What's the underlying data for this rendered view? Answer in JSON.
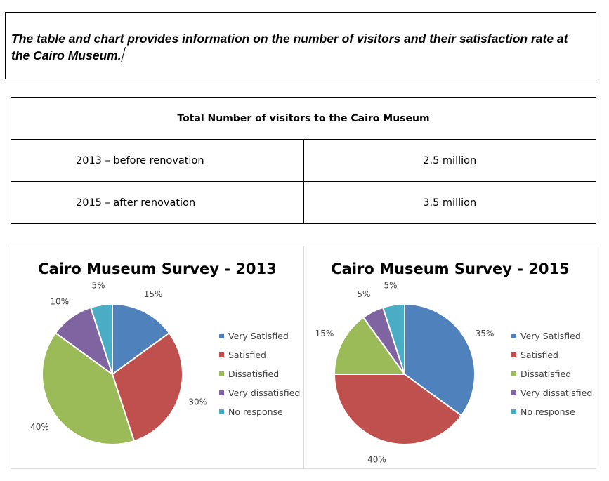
{
  "prompt": "The table and chart provides information on the number of visitors and their satisfaction rate at the Cairo Museum.",
  "table": {
    "title": "Total Number of visitors to the Cairo Museum",
    "rows": [
      {
        "label": "2013 – before renovation",
        "value": "2.5 million"
      },
      {
        "label": "2015 – after renovation",
        "value": "3.5 million"
      }
    ]
  },
  "chart_data": [
    {
      "type": "pie",
      "title": "Cairo Museum Survey - 2013",
      "categories": [
        "Very Satisfied",
        "Satisfied",
        "Dissatisfied",
        "Very dissatisfied",
        "No response"
      ],
      "values": [
        15,
        30,
        40,
        10,
        5
      ],
      "value_labels": [
        "15%",
        "30%",
        "40%",
        "10%",
        "5%"
      ],
      "colors": [
        "#4f81bd",
        "#c0504d",
        "#9bbb59",
        "#8064a2",
        "#4bacc6"
      ],
      "legend_position": "right"
    },
    {
      "type": "pie",
      "title": "Cairo Museum Survey - 2015",
      "categories": [
        "Very Satisfied",
        "Satisfied",
        "Dissatisfied",
        "Very dissatisfied",
        "No response"
      ],
      "values": [
        35,
        40,
        15,
        5,
        5
      ],
      "value_labels": [
        "35%",
        "40%",
        "15%",
        "5%",
        "5%"
      ],
      "colors": [
        "#4f81bd",
        "#c0504d",
        "#9bbb59",
        "#8064a2",
        "#4bacc6"
      ],
      "legend_position": "right"
    }
  ]
}
